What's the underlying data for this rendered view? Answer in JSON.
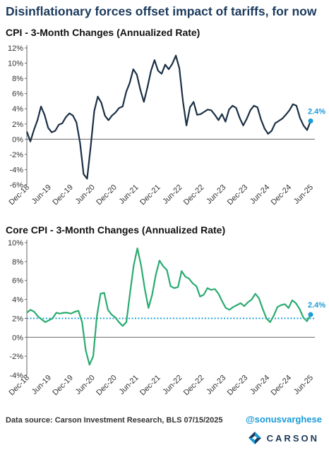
{
  "title": "Disinflationary forces offset impact of tariffs, for now",
  "footer": {
    "source": "Data source: Carson Investment Research, BLS   07/15/2025",
    "handle": "@sonusvarghese",
    "logo_text": "CARSON"
  },
  "colors": {
    "title": "#1b3a5c",
    "cpi_line": "#1b2f45",
    "core_line": "#2aab70",
    "end_marker": "#1a9bd7",
    "reference_line": "#1a9bd7"
  },
  "chart_data": [
    {
      "type": "line",
      "title": "CPI - 3-Month Changes (Annualized Rate)",
      "x_tick_labels": [
        "Dec-18",
        "Jun-19",
        "Dec-19",
        "Jun-20",
        "Dec-20",
        "Jun-21",
        "Dec-21",
        "Jun-22",
        "Dec-22",
        "Jun-23",
        "Dec-23",
        "Jun-24",
        "Dec-24",
        "Jun-25"
      ],
      "x_start": "Dec-18",
      "x_end": "Jun-25",
      "y_ticks": [
        12,
        10,
        8,
        6,
        4,
        2,
        0,
        -2,
        -4,
        -6
      ],
      "ylim": [
        -6,
        12
      ],
      "y_format": "percent",
      "grid": false,
      "series": [
        {
          "values": [
            1.0,
            -0.3,
            1.2,
            2.5,
            4.3,
            3.2,
            1.5,
            0.9,
            1.1,
            1.9,
            2.1,
            2.9,
            3.4,
            3.1,
            2.2,
            -0.5,
            -4.6,
            -5.2,
            -1.0,
            3.7,
            5.6,
            4.8,
            3.1,
            2.5,
            3.1,
            3.5,
            4.1,
            4.3,
            6.2,
            7.4,
            9.2,
            8.5,
            6.5,
            4.9,
            6.8,
            9.0,
            10.4,
            9.0,
            8.6,
            9.8,
            9.2,
            9.9,
            11.0,
            9.3,
            5.0,
            1.8,
            4.2,
            4.9,
            3.2,
            3.3,
            3.6,
            3.9,
            3.8,
            3.2,
            2.5,
            3.3,
            2.3,
            3.9,
            4.4,
            4.1,
            2.8,
            1.8,
            2.7,
            3.8,
            4.4,
            4.2,
            2.6,
            1.4,
            0.7,
            1.1,
            2.1,
            2.4,
            2.7,
            3.2,
            3.8,
            4.6,
            4.4,
            2.8,
            1.8,
            1.2,
            2.4
          ]
        }
      ],
      "end_label": "2.4%"
    },
    {
      "type": "line",
      "title": "Core CPI - 3-Month Changes (Annualized Rate)",
      "x_tick_labels": [
        "Dec-18",
        "Jun-19",
        "Dec-19",
        "Jun-20",
        "Dec-20",
        "Jun-21",
        "Dec-21",
        "Jun-22",
        "Dec-22",
        "Jun-23",
        "Dec-23",
        "Jun-24",
        "Dec-24",
        "Jun-25"
      ],
      "x_start": "Dec-18",
      "x_end": "Jun-25",
      "y_ticks": [
        10,
        8,
        6,
        4,
        2,
        0,
        -2,
        -4
      ],
      "ylim": [
        -4,
        10
      ],
      "y_format": "percent",
      "grid": false,
      "reference_line": 2,
      "series": [
        {
          "values": [
            2.6,
            2.9,
            2.7,
            2.2,
            1.9,
            1.6,
            1.8,
            2.0,
            2.6,
            2.5,
            2.6,
            2.6,
            2.5,
            2.7,
            2.8,
            1.6,
            -1.4,
            -2.9,
            -2.0,
            2.2,
            4.6,
            4.7,
            2.9,
            2.4,
            2.1,
            1.6,
            1.2,
            1.6,
            4.7,
            7.6,
            9.4,
            7.6,
            5.1,
            3.1,
            4.5,
            6.6,
            8.1,
            7.5,
            7.1,
            5.4,
            5.2,
            5.3,
            7.0,
            6.4,
            6.2,
            5.7,
            5.4,
            4.3,
            4.5,
            5.2,
            5.0,
            5.1,
            4.6,
            3.8,
            3.1,
            2.9,
            3.2,
            3.4,
            3.6,
            3.3,
            3.7,
            4.0,
            4.6,
            4.1,
            3.0,
            2.0,
            1.6,
            2.3,
            3.2,
            3.4,
            3.5,
            3.1,
            3.9,
            3.6,
            3.0,
            2.1,
            1.7,
            2.4
          ]
        }
      ],
      "end_label": "2.4%"
    }
  ]
}
